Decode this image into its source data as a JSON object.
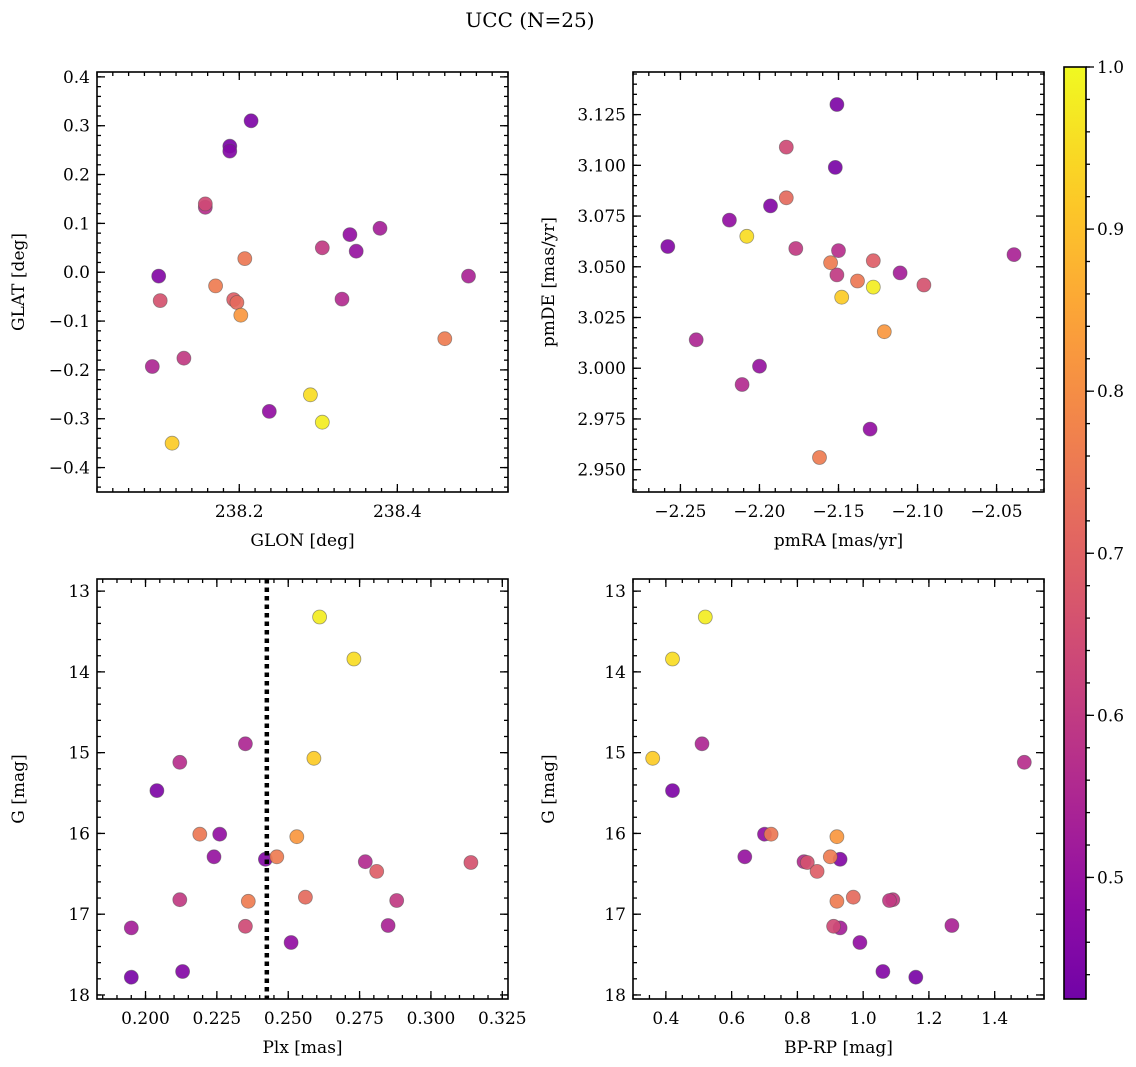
{
  "chart_data": {
    "title": "UCC (N=25)",
    "colorbar": {
      "range": [
        0.425,
        1.0
      ],
      "ticks": [
        0.5,
        0.6,
        0.7,
        0.8,
        0.9,
        1.0
      ],
      "tick_labels": [
        "0.5",
        "0.6",
        "0.7",
        "0.8",
        "0.9",
        "1.0"
      ],
      "colormap": "plasma"
    },
    "points": [
      {
        "glon": 238.215,
        "glat": 0.31,
        "pmra": -2.151,
        "pmde": 3.13,
        "plx": 0.204,
        "g": 15.47,
        "bprp": 0.42,
        "p": 0.45
      },
      {
        "glon": 238.188,
        "glat": 0.258,
        "pmra": -2.152,
        "pmde": 3.099,
        "plx": 0.195,
        "g": 17.78,
        "bprp": 1.16,
        "p": 0.44
      },
      {
        "glon": 238.188,
        "glat": 0.248,
        "pmra": -2.193,
        "pmde": 3.08,
        "plx": 0.213,
        "g": 17.71,
        "bprp": 1.06,
        "p": 0.46
      },
      {
        "glon": 238.157,
        "glat": 0.14,
        "pmra": -2.183,
        "pmde": 3.109,
        "plx": 0.235,
        "g": 17.15,
        "bprp": 0.91,
        "p": 0.64
      },
      {
        "glon": 238.157,
        "glat": 0.133,
        "pmra": -2.15,
        "pmde": 3.058,
        "plx": 0.212,
        "g": 15.12,
        "bprp": 1.49,
        "p": 0.57
      },
      {
        "glon": 238.378,
        "glat": 0.09,
        "pmra": -2.111,
        "pmde": 3.047,
        "plx": 0.195,
        "g": 17.17,
        "bprp": 0.93,
        "p": 0.53
      },
      {
        "glon": 238.34,
        "glat": 0.077,
        "pmra": -2.219,
        "pmde": 3.073,
        "plx": 0.226,
        "g": 16.01,
        "bprp": 0.7,
        "p": 0.49
      },
      {
        "glon": 238.305,
        "glat": 0.05,
        "pmra": -2.151,
        "pmde": 3.046,
        "plx": 0.212,
        "g": 16.82,
        "bprp": 1.09,
        "p": 0.6
      },
      {
        "glon": 238.348,
        "glat": 0.043,
        "pmra": -2.2,
        "pmde": 3.001,
        "plx": 0.224,
        "g": 16.29,
        "bprp": 0.64,
        "p": 0.5
      },
      {
        "glon": 238.207,
        "glat": 0.028,
        "pmra": -2.138,
        "pmde": 3.043,
        "plx": 0.219,
        "g": 16.01,
        "bprp": 0.72,
        "p": 0.75
      },
      {
        "glon": 238.098,
        "glat": -0.008,
        "pmra": -2.258,
        "pmde": 3.06,
        "plx": 0.242,
        "g": 16.32,
        "bprp": 0.93,
        "p": 0.46
      },
      {
        "glon": 238.49,
        "glat": -0.008,
        "pmra": -2.039,
        "pmde": 3.056,
        "plx": 0.285,
        "g": 17.14,
        "bprp": 1.27,
        "p": 0.54
      },
      {
        "glon": 238.17,
        "glat": -0.028,
        "pmra": -2.155,
        "pmde": 3.052,
        "plx": 0.246,
        "g": 16.29,
        "bprp": 0.9,
        "p": 0.76
      },
      {
        "glon": 238.193,
        "glat": -0.056,
        "pmra": -2.128,
        "pmde": 3.053,
        "plx": 0.281,
        "g": 16.47,
        "bprp": 0.86,
        "p": 0.69
      },
      {
        "glon": 238.197,
        "glat": -0.062,
        "pmra": -2.183,
        "pmde": 3.084,
        "plx": 0.256,
        "g": 16.79,
        "bprp": 0.97,
        "p": 0.72
      },
      {
        "glon": 238.1,
        "glat": -0.058,
        "pmra": -2.096,
        "pmde": 3.041,
        "plx": 0.314,
        "g": 16.36,
        "bprp": 0.83,
        "p": 0.66
      },
      {
        "glon": 238.33,
        "glat": -0.055,
        "pmra": -2.211,
        "pmde": 2.992,
        "plx": 0.277,
        "g": 16.35,
        "bprp": 0.82,
        "p": 0.56
      },
      {
        "glon": 238.202,
        "glat": -0.088,
        "pmra": -2.121,
        "pmde": 3.018,
        "plx": 0.253,
        "g": 16.04,
        "bprp": 0.92,
        "p": 0.82
      },
      {
        "glon": 238.46,
        "glat": -0.136,
        "pmra": -2.162,
        "pmde": 2.956,
        "plx": 0.236,
        "g": 16.84,
        "bprp": 0.92,
        "p": 0.76
      },
      {
        "glon": 238.13,
        "glat": -0.176,
        "pmra": -2.177,
        "pmde": 3.059,
        "plx": 0.288,
        "g": 16.83,
        "bprp": 1.08,
        "p": 0.6
      },
      {
        "glon": 238.09,
        "glat": -0.193,
        "pmra": -2.24,
        "pmde": 3.014,
        "plx": 0.235,
        "g": 14.89,
        "bprp": 0.51,
        "p": 0.55
      },
      {
        "glon": 238.238,
        "glat": -0.285,
        "pmra": -2.13,
        "pmde": 2.97,
        "plx": 0.251,
        "g": 17.35,
        "bprp": 0.99,
        "p": 0.49
      },
      {
        "glon": 238.29,
        "glat": -0.251,
        "pmra": -2.208,
        "pmde": 3.065,
        "plx": 0.273,
        "g": 13.84,
        "bprp": 0.42,
        "p": 0.95
      },
      {
        "glon": 238.305,
        "glat": -0.307,
        "pmra": -2.128,
        "pmde": 3.04,
        "plx": 0.261,
        "g": 13.32,
        "bprp": 0.52,
        "p": 0.98
      },
      {
        "glon": 238.115,
        "glat": -0.35,
        "pmra": -2.148,
        "pmde": 3.035,
        "plx": 0.259,
        "g": 15.07,
        "bprp": 0.36,
        "p": 0.92
      }
    ],
    "panels": [
      {
        "type": "scatter",
        "xkey": "glon",
        "ykey": "glat",
        "xlabel": "GLON [deg]",
        "ylabel": "GLAT [deg]",
        "xlim": [
          238.02,
          238.54
        ],
        "ylim": [
          -0.45,
          0.41
        ],
        "xticks": [
          238.2,
          238.4
        ],
        "xtick_labels": [
          "238.2",
          "238.4"
        ],
        "yticks": [
          -0.4,
          -0.3,
          -0.2,
          -0.1,
          0.0,
          0.1,
          0.2,
          0.3,
          0.4
        ],
        "ytick_labels": [
          "−0.4",
          "−0.3",
          "−0.2",
          "−0.1",
          "0.0",
          "0.1",
          "0.2",
          "0.3",
          "0.4"
        ],
        "x_minor": 0.02,
        "y_minor": 0.02,
        "y_inverted": false
      },
      {
        "type": "scatter",
        "xkey": "pmra",
        "ykey": "pmde",
        "xlabel": "pmRA [mas/yr]",
        "ylabel": "pmDE [mas/yr]",
        "xlim": [
          -2.28,
          -2.02
        ],
        "ylim": [
          2.939,
          3.146
        ],
        "xticks": [
          -2.25,
          -2.2,
          -2.15,
          -2.1,
          -2.05
        ],
        "xtick_labels": [
          "−2.25",
          "−2.20",
          "−2.15",
          "−2.10",
          "−2.05"
        ],
        "yticks": [
          2.95,
          2.975,
          3.0,
          3.025,
          3.05,
          3.075,
          3.1,
          3.125
        ],
        "ytick_labels": [
          "2.950",
          "2.975",
          "3.000",
          "3.025",
          "3.050",
          "3.075",
          "3.100",
          "3.125"
        ],
        "x_minor": 0.01,
        "y_minor": 0.005,
        "y_inverted": false
      },
      {
        "type": "scatter",
        "xkey": "plx",
        "ykey": "g",
        "xlabel": "Plx [mas]",
        "ylabel": "G [mag]",
        "xlim": [
          0.183,
          0.327
        ],
        "ylim": [
          12.85,
          18.05
        ],
        "xticks": [
          0.2,
          0.225,
          0.25,
          0.275,
          0.3,
          0.325
        ],
        "xtick_labels": [
          "0.200",
          "0.225",
          "0.250",
          "0.275",
          "0.300",
          "0.325"
        ],
        "yticks": [
          13,
          14,
          15,
          16,
          17,
          18
        ],
        "ytick_labels": [
          "13",
          "14",
          "15",
          "16",
          "17",
          "18"
        ],
        "x_minor": 0.005,
        "y_minor": 0.2,
        "y_inverted": true,
        "vline": 0.2425
      },
      {
        "type": "scatter",
        "xkey": "bprp",
        "ykey": "g",
        "xlabel": "BP-RP [mag]",
        "ylabel": "G [mag]",
        "xlim": [
          0.3,
          1.55
        ],
        "ylim": [
          12.85,
          18.05
        ],
        "xticks": [
          0.4,
          0.6,
          0.8,
          1.0,
          1.2,
          1.4
        ],
        "xtick_labels": [
          "0.4",
          "0.6",
          "0.8",
          "1.0",
          "1.2",
          "1.4"
        ],
        "yticks": [
          13,
          14,
          15,
          16,
          17,
          18
        ],
        "ytick_labels": [
          "13",
          "14",
          "15",
          "16",
          "17",
          "18"
        ],
        "x_minor": 0.05,
        "y_minor": 0.2,
        "y_inverted": true
      }
    ]
  }
}
